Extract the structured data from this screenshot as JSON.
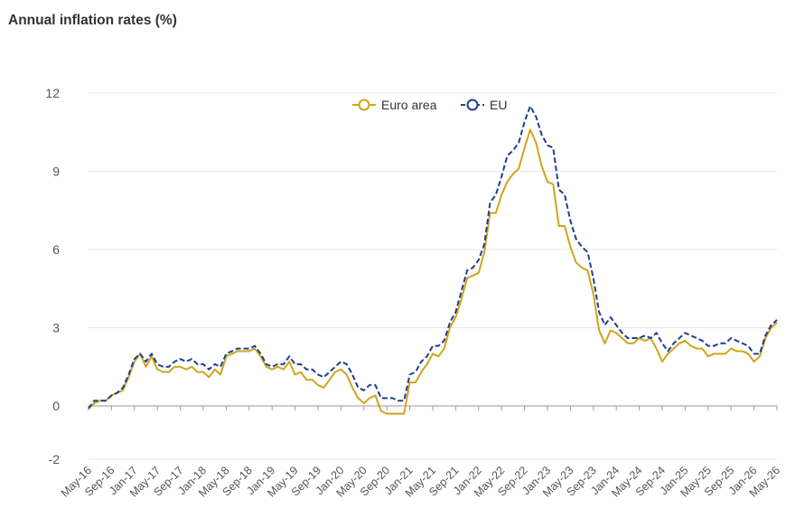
{
  "chart_data": {
    "type": "line",
    "title": "Annual inflation rates (%)",
    "y_ticks": [
      -2,
      0,
      3,
      6,
      9,
      12
    ],
    "ylim": [
      -2,
      12
    ],
    "x_tick_labels": [
      "May-16",
      "Sep-16",
      "Jan-17",
      "May-17",
      "Sep-17",
      "Jan-18",
      "May-18",
      "Sep-18",
      "Jan-19",
      "May-19",
      "Sep-19",
      "Jan-20",
      "May-20",
      "Sep-20",
      "Jan-21",
      "May-21",
      "Sep-21",
      "Jan-22",
      "May-22",
      "Sep-22",
      "Jan-23",
      "May-23",
      "Sep-23",
      "Jan-24",
      "May-24",
      "Sep-24",
      "Jan-25",
      "May-25",
      "Sep-25",
      "Jan-26",
      "May-26"
    ],
    "grid": true,
    "legend_position": "top-center",
    "series": [
      {
        "name": "Euro area",
        "color": "#cfa51a",
        "values": [
          -0.1,
          0.1,
          0.2,
          0.2,
          0.4,
          0.5,
          0.6,
          1.1,
          1.7,
          2.0,
          1.5,
          1.9,
          1.4,
          1.3,
          1.3,
          1.5,
          1.5,
          1.4,
          1.5,
          1.3,
          1.3,
          1.1,
          1.4,
          1.2,
          1.9,
          2.0,
          2.1,
          2.1,
          2.1,
          2.2,
          1.9,
          1.5,
          1.4,
          1.5,
          1.4,
          1.7,
          1.2,
          1.3,
          1.0,
          1.0,
          0.8,
          0.7,
          1.0,
          1.3,
          1.4,
          1.2,
          0.7,
          0.3,
          0.1,
          0.3,
          0.4,
          -0.2,
          -0.3,
          -0.3,
          -0.3,
          -0.3,
          0.9,
          0.9,
          1.3,
          1.6,
          2.0,
          1.9,
          2.2,
          3.0,
          3.4,
          4.1,
          4.9,
          5.0,
          5.1,
          5.9,
          7.4,
          7.4,
          8.1,
          8.6,
          8.9,
          9.1,
          9.9,
          10.6,
          10.1,
          9.2,
          8.6,
          8.5,
          6.9,
          6.9,
          6.1,
          5.5,
          5.3,
          5.2,
          4.3,
          2.9,
          2.4,
          2.9,
          2.8,
          2.6,
          2.4,
          2.4,
          2.6,
          2.5,
          2.6,
          2.2,
          1.7,
          2.0,
          2.2,
          2.4,
          2.5,
          2.3,
          2.2,
          2.2,
          1.9,
          2.0,
          2.0,
          2.0,
          2.2,
          2.1,
          2.1,
          2.0,
          1.7,
          1.9,
          2.6,
          3.0,
          3.2
        ]
      },
      {
        "name": "EU",
        "color": "#1f3f8f",
        "values": [
          -0.1,
          0.2,
          0.2,
          0.2,
          0.4,
          0.5,
          0.7,
          1.2,
          1.8,
          2.0,
          1.7,
          2.0,
          1.6,
          1.5,
          1.5,
          1.7,
          1.8,
          1.7,
          1.8,
          1.6,
          1.6,
          1.4,
          1.6,
          1.5,
          2.0,
          2.1,
          2.2,
          2.2,
          2.2,
          2.3,
          2.0,
          1.6,
          1.5,
          1.6,
          1.6,
          1.9,
          1.6,
          1.6,
          1.4,
          1.4,
          1.2,
          1.1,
          1.3,
          1.5,
          1.7,
          1.6,
          1.2,
          0.7,
          0.6,
          0.8,
          0.8,
          0.3,
          0.3,
          0.3,
          0.2,
          0.2,
          1.2,
          1.3,
          1.7,
          1.9,
          2.3,
          2.3,
          2.5,
          3.2,
          3.6,
          4.4,
          5.2,
          5.3,
          5.6,
          6.2,
          7.8,
          8.1,
          8.8,
          9.6,
          9.8,
          10.1,
          10.9,
          11.5,
          11.1,
          10.4,
          10.0,
          9.9,
          8.3,
          8.1,
          7.1,
          6.4,
          6.1,
          5.9,
          4.9,
          3.6,
          3.1,
          3.4,
          3.1,
          2.8,
          2.6,
          2.6,
          2.6,
          2.7,
          2.6,
          2.8,
          2.4,
          2.1,
          2.4,
          2.6,
          2.8,
          2.7,
          2.6,
          2.5,
          2.3,
          2.3,
          2.4,
          2.4,
          2.6,
          2.5,
          2.4,
          2.3,
          2.0,
          2.0,
          2.7,
          3.1,
          3.3
        ]
      }
    ]
  }
}
